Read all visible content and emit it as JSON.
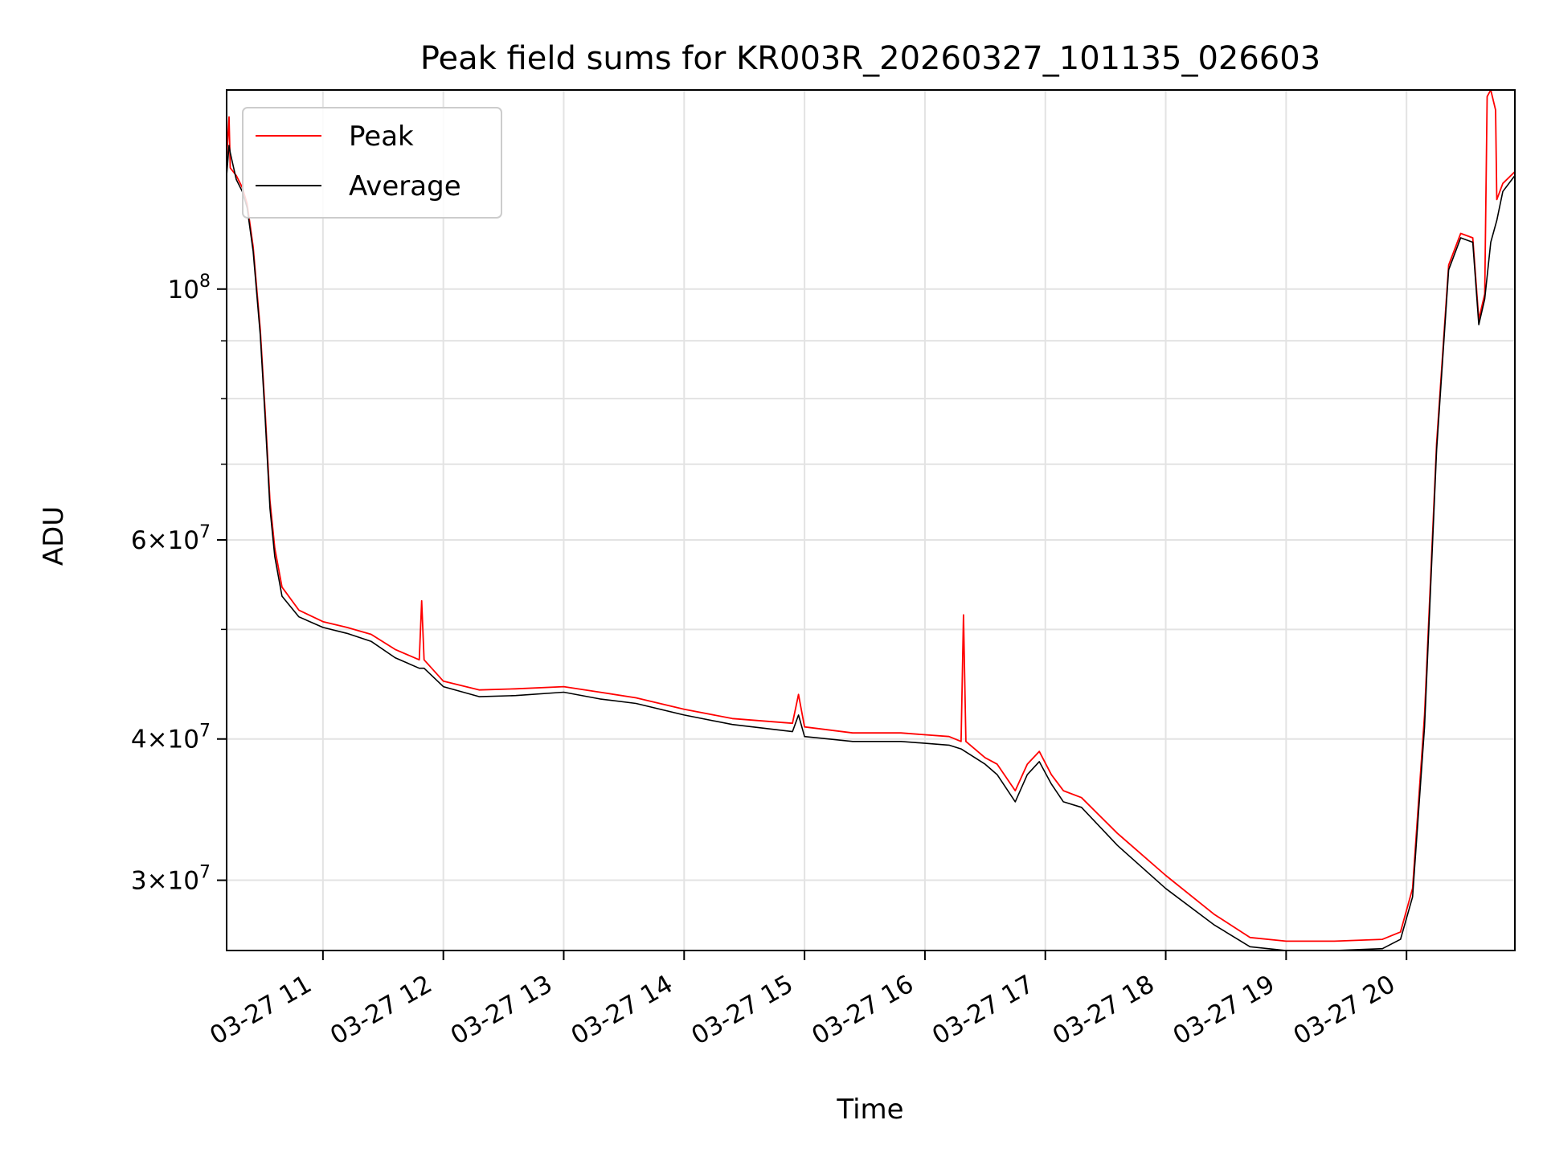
{
  "chart_data": {
    "type": "line",
    "title": "Peak field sums for KR003R_20260327_101135_026603",
    "xlabel": "Time",
    "ylabel": "ADU",
    "yscale": "log",
    "xlim": [
      10.2,
      20.9
    ],
    "ylim": [
      26000000.0,
      150000000.0
    ],
    "grid": true,
    "legend_position": "top-left",
    "x_ticks": [
      {
        "value": 11,
        "label": "03-27 11"
      },
      {
        "value": 12,
        "label": "03-27 12"
      },
      {
        "value": 13,
        "label": "03-27 13"
      },
      {
        "value": 14,
        "label": "03-27 14"
      },
      {
        "value": 15,
        "label": "03-27 15"
      },
      {
        "value": 16,
        "label": "03-27 16"
      },
      {
        "value": 17,
        "label": "03-27 17"
      },
      {
        "value": 18,
        "label": "03-27 18"
      },
      {
        "value": 19,
        "label": "03-27 19"
      },
      {
        "value": 20,
        "label": "03-27 20"
      }
    ],
    "y_major_ticks": [
      {
        "value": 30000000,
        "mant": "3",
        "exp": "7"
      },
      {
        "value": 40000000,
        "mant": "4",
        "exp": "7"
      },
      {
        "value": 60000000,
        "mant": "6",
        "exp": "7"
      },
      {
        "value": 100000000,
        "mant": "",
        "exp": "8"
      }
    ],
    "y_minor_ticks": [
      50000000,
      70000000,
      80000000,
      90000000
    ],
    "series": [
      {
        "name": "Peak",
        "color": "#ff0000",
        "points": [
          [
            10.2,
            130000000.0
          ],
          [
            10.22,
            142000000.0
          ],
          [
            10.23,
            128000000.0
          ],
          [
            10.28,
            126000000.0
          ],
          [
            10.33,
            123000000.0
          ],
          [
            10.37,
            119000000.0
          ],
          [
            10.42,
            109000000.0
          ],
          [
            10.48,
            92000000.0
          ],
          [
            10.52,
            78000000.0
          ],
          [
            10.56,
            65000000.0
          ],
          [
            10.6,
            59000000.0
          ],
          [
            10.66,
            54500000.0
          ],
          [
            10.8,
            52000000.0
          ],
          [
            11.0,
            50800000.0
          ],
          [
            11.2,
            50200000.0
          ],
          [
            11.4,
            49500000.0
          ],
          [
            11.6,
            48000000.0
          ],
          [
            11.8,
            47000000.0
          ],
          [
            11.82,
            53000000.0
          ],
          [
            11.84,
            47000000.0
          ],
          [
            12.0,
            45000000.0
          ],
          [
            12.3,
            44200000.0
          ],
          [
            12.6,
            44300000.0
          ],
          [
            13.0,
            44500000.0
          ],
          [
            13.3,
            44000000.0
          ],
          [
            13.6,
            43500000.0
          ],
          [
            14.0,
            42500000.0
          ],
          [
            14.4,
            41700000.0
          ],
          [
            14.9,
            41300000.0
          ],
          [
            14.95,
            43800000.0
          ],
          [
            15.0,
            41000000.0
          ],
          [
            15.4,
            40500000.0
          ],
          [
            15.8,
            40500000.0
          ],
          [
            16.2,
            40200000.0
          ],
          [
            16.3,
            39800000.0
          ],
          [
            16.32,
            51500000.0
          ],
          [
            16.34,
            39800000.0
          ],
          [
            16.5,
            38500000.0
          ],
          [
            16.6,
            38000000.0
          ],
          [
            16.75,
            36000000.0
          ],
          [
            16.85,
            38000000.0
          ],
          [
            16.95,
            39000000.0
          ],
          [
            17.05,
            37200000.0
          ],
          [
            17.15,
            36000000.0
          ],
          [
            17.3,
            35500000.0
          ],
          [
            17.6,
            33000000.0
          ],
          [
            18.0,
            30300000.0
          ],
          [
            18.4,
            28000000.0
          ],
          [
            18.7,
            26700000.0
          ],
          [
            19.0,
            26500000.0
          ],
          [
            19.4,
            26500000.0
          ],
          [
            19.8,
            26600000.0
          ],
          [
            19.95,
            27000000.0
          ],
          [
            20.05,
            29500000.0
          ],
          [
            20.15,
            42000000.0
          ],
          [
            20.25,
            73000000.0
          ],
          [
            20.35,
            105000000.0
          ],
          [
            20.45,
            112000000.0
          ],
          [
            20.55,
            111000000.0
          ],
          [
            20.6,
            94000000.0
          ],
          [
            20.65,
            99000000.0
          ],
          [
            20.67,
            148000000.0
          ],
          [
            20.7,
            150000000.0
          ],
          [
            20.74,
            144000000.0
          ],
          [
            20.75,
            120000000.0
          ],
          [
            20.8,
            124000000.0
          ],
          [
            20.9,
            127000000.0
          ]
        ]
      },
      {
        "name": "Average",
        "color": "#000000",
        "points": [
          [
            10.2,
            126000000.0
          ],
          [
            10.22,
            134000000.0
          ],
          [
            10.23,
            132000000.0
          ],
          [
            10.28,
            125000000.0
          ],
          [
            10.33,
            122000000.0
          ],
          [
            10.37,
            118000000.0
          ],
          [
            10.42,
            108000000.0
          ],
          [
            10.48,
            91000000.0
          ],
          [
            10.52,
            77000000.0
          ],
          [
            10.56,
            64000000.0
          ],
          [
            10.6,
            58000000.0
          ],
          [
            10.66,
            53500000.0
          ],
          [
            10.8,
            51300000.0
          ],
          [
            11.0,
            50200000.0
          ],
          [
            11.2,
            49600000.0
          ],
          [
            11.4,
            48800000.0
          ],
          [
            11.6,
            47200000.0
          ],
          [
            11.8,
            46200000.0
          ],
          [
            11.84,
            46200000.0
          ],
          [
            12.0,
            44500000.0
          ],
          [
            12.3,
            43600000.0
          ],
          [
            12.6,
            43700000.0
          ],
          [
            13.0,
            44000000.0
          ],
          [
            13.3,
            43400000.0
          ],
          [
            13.6,
            43000000.0
          ],
          [
            14.0,
            42000000.0
          ],
          [
            14.4,
            41200000.0
          ],
          [
            14.9,
            40600000.0
          ],
          [
            14.95,
            42000000.0
          ],
          [
            15.0,
            40200000.0
          ],
          [
            15.4,
            39800000.0
          ],
          [
            15.8,
            39800000.0
          ],
          [
            16.2,
            39500000.0
          ],
          [
            16.3,
            39200000.0
          ],
          [
            16.5,
            38000000.0
          ],
          [
            16.6,
            37200000.0
          ],
          [
            16.75,
            35200000.0
          ],
          [
            16.85,
            37200000.0
          ],
          [
            16.95,
            38200000.0
          ],
          [
            17.05,
            36500000.0
          ],
          [
            17.15,
            35200000.0
          ],
          [
            17.3,
            34800000.0
          ],
          [
            17.6,
            32200000.0
          ],
          [
            18.0,
            29500000.0
          ],
          [
            18.4,
            27400000.0
          ],
          [
            18.7,
            26200000.0
          ],
          [
            19.0,
            26000000.0
          ],
          [
            19.4,
            26000000.0
          ],
          [
            19.8,
            26100000.0
          ],
          [
            19.95,
            26600000.0
          ],
          [
            20.05,
            29000000.0
          ],
          [
            20.15,
            41000000.0
          ],
          [
            20.25,
            72000000.0
          ],
          [
            20.35,
            104000000.0
          ],
          [
            20.45,
            111000000.0
          ],
          [
            20.55,
            110000000.0
          ],
          [
            20.6,
            93000000.0
          ],
          [
            20.65,
            98000000.0
          ],
          [
            20.7,
            110000000.0
          ],
          [
            20.75,
            115000000.0
          ],
          [
            20.8,
            122000000.0
          ],
          [
            20.9,
            126000000.0
          ]
        ]
      }
    ]
  }
}
